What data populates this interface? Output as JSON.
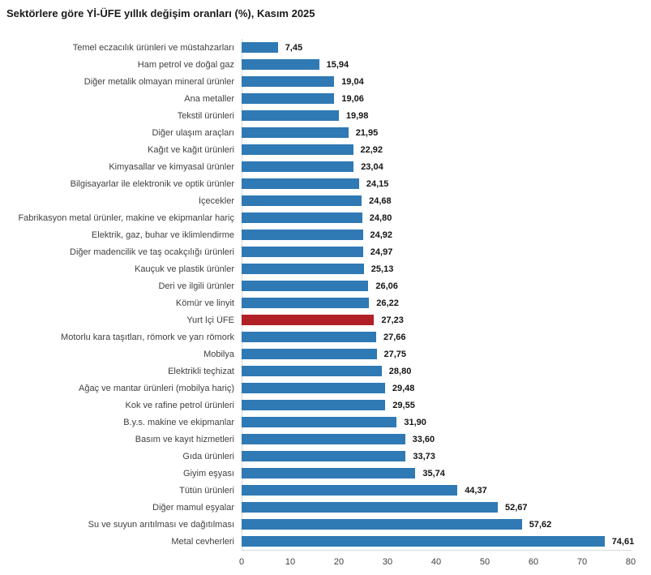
{
  "title": "Sektörlere göre Yİ-ÜFE yıllık değişim oranları (%), Kasım 2025",
  "colors": {
    "bar": "#2F79B4",
    "highlight": "#B02026",
    "axis_line": "#D9D9D9"
  },
  "chart_data": {
    "type": "bar",
    "orientation": "horizontal",
    "title": "Sektörlere göre Yİ-ÜFE yıllık değişim oranları (%), Kasım 2025",
    "categories": [
      "Temel eczacılık ürünleri ve müstahzarları",
      "Ham petrol ve doğal gaz",
      "Diğer metalik olmayan mineral ürünler",
      "Ana metaller",
      "Tekstil ürünleri",
      "Diğer ulaşım araçları",
      "Kağıt ve kağıt ürünleri",
      "Kimyasallar ve kimyasal ürünler",
      "Bilgisayarlar ile elektronik ve optik ürünler",
      "İçecekler",
      "Fabrikasyon metal ürünler, makine ve ekipmanlar hariç",
      "Elektrik, gaz, buhar ve iklimlendirme",
      "Diğer madencilik ve taş ocakçılığı ürünleri",
      "Kauçuk ve plastik ürünler",
      "Deri ve ilgili ürünler",
      "Kömür ve linyit",
      "Yurt İçi ÜFE",
      "Motorlu kara taşıtları, römork ve yarı römork",
      "Mobilya",
      "Elektrikli teçhizat",
      "Ağaç ve mantar ürünleri (mobilya hariç)",
      "Kok ve rafine petrol ürünleri",
      "B.y.s. makine ve ekipmanlar",
      "Basım ve kayıt hizmetleri",
      "Gıda ürünleri",
      "Giyim eşyası",
      "Tütün ürünleri",
      "Diğer mamul eşyalar",
      "Su ve suyun arıtılması ve dağıtılması",
      "Metal cevherleri"
    ],
    "values": [
      7.45,
      15.94,
      19.04,
      19.06,
      19.98,
      21.95,
      22.92,
      23.04,
      24.15,
      24.68,
      24.8,
      24.92,
      24.97,
      25.13,
      26.06,
      26.22,
      27.23,
      27.66,
      27.75,
      28.8,
      29.48,
      29.55,
      31.9,
      33.6,
      33.73,
      35.74,
      44.37,
      52.67,
      57.62,
      74.61
    ],
    "value_labels": [
      "7,45",
      "15,94",
      "19,04",
      "19,06",
      "19,98",
      "21,95",
      "22,92",
      "23,04",
      "24,15",
      "24,68",
      "24,80",
      "24,92",
      "24,97",
      "25,13",
      "26,06",
      "26,22",
      "27,23",
      "27,66",
      "27,75",
      "28,80",
      "29,48",
      "29,55",
      "31,90",
      "33,60",
      "33,73",
      "35,74",
      "44,37",
      "52,67",
      "57,62",
      "74,61"
    ],
    "highlight_index": 16,
    "highlight_category": "Yurt İçi ÜFE",
    "xlim": [
      0,
      80
    ],
    "xticks": [
      0,
      10,
      20,
      30,
      40,
      50,
      60,
      70,
      80
    ],
    "xlabel": "",
    "ylabel": "",
    "grid": false,
    "legend": false
  }
}
